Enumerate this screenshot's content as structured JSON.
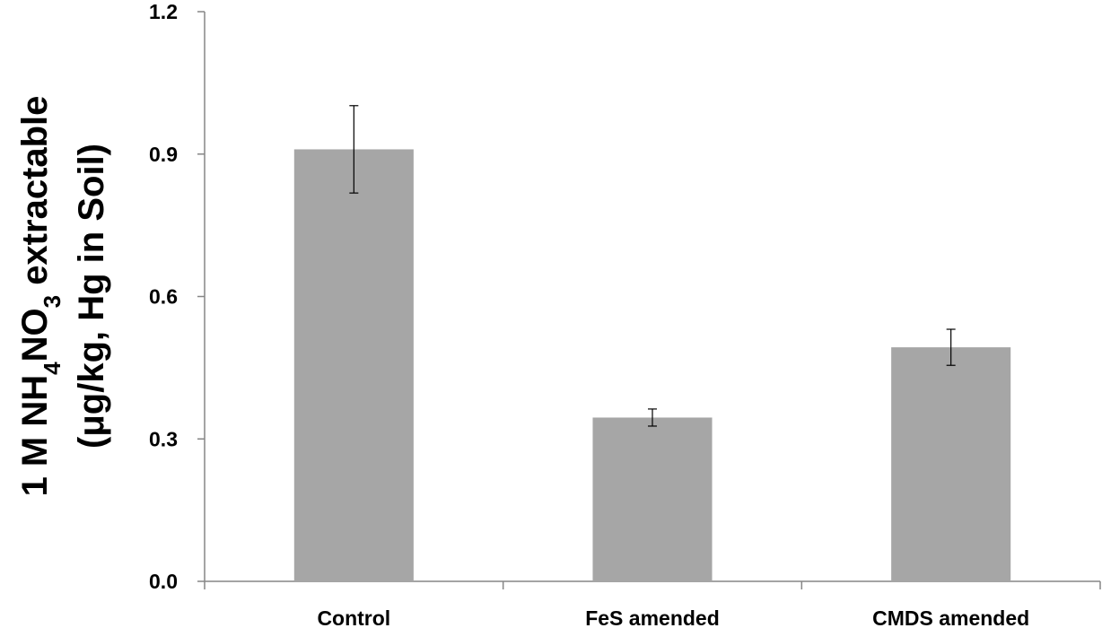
{
  "chart_data": {
    "type": "bar",
    "categories": [
      "Control",
      "FeS amended",
      "CMDS amended"
    ],
    "values": [
      0.91,
      0.345,
      0.493
    ],
    "errors": [
      0.092,
      0.018,
      0.038
    ],
    "ylabel_line1_prefix": "1 M NH",
    "ylabel_sub1": "4",
    "ylabel_line1_mid": "NO",
    "ylabel_sub2": "3",
    "ylabel_line1_suffix": " extractable",
    "ylabel_line2": "(μg/kg, Hg in Soil)",
    "ylim": [
      0,
      1.2
    ],
    "yticks": [
      "0.0",
      "0.3",
      "0.6",
      "0.9",
      "1.2"
    ],
    "ytick_values": [
      0,
      0.3,
      0.6,
      0.9,
      1.2
    ],
    "grid": false,
    "bar_color": "#a6a6a6",
    "axis_color": "#868686"
  }
}
